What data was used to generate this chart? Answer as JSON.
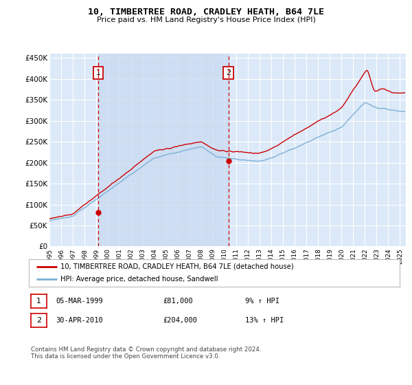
{
  "title": "10, TIMBERTREE ROAD, CRADLEY HEATH, B64 7LE",
  "subtitle": "Price paid vs. HM Land Registry's House Price Index (HPI)",
  "background_color": "#ffffff",
  "plot_bg_color": "#dce9f8",
  "grid_color": "#ffffff",
  "shade_color": "#c8d8f0",
  "ylim": [
    0,
    460000
  ],
  "yticks": [
    0,
    50000,
    100000,
    150000,
    200000,
    250000,
    300000,
    350000,
    400000,
    450000
  ],
  "ytick_labels": [
    "£0",
    "£50K",
    "£100K",
    "£150K",
    "£200K",
    "£250K",
    "£300K",
    "£350K",
    "£400K",
    "£450K"
  ],
  "xlim_left": 1995,
  "xlim_right": 2025.5,
  "hpi_line_color": "#7bafd4",
  "price_line_color": "#cc0000",
  "dashed_line_color": "#cc0000",
  "marker1_year": 1999.17,
  "marker1_value": 81000,
  "marker2_year": 2010.33,
  "marker2_value": 204000,
  "legend_label1": "10, TIMBERTREE ROAD, CRADLEY HEATH, B64 7LE (detached house)",
  "legend_label2": "HPI: Average price, detached house, Sandwell",
  "note1_date": "05-MAR-1999",
  "note1_price": "£81,000",
  "note1_hpi": "9% ↑ HPI",
  "note2_date": "30-APR-2010",
  "note2_price": "£204,000",
  "note2_hpi": "13% ↑ HPI",
  "footer": "Contains HM Land Registry data © Crown copyright and database right 2024.\nThis data is licensed under the Open Government Licence v3.0."
}
